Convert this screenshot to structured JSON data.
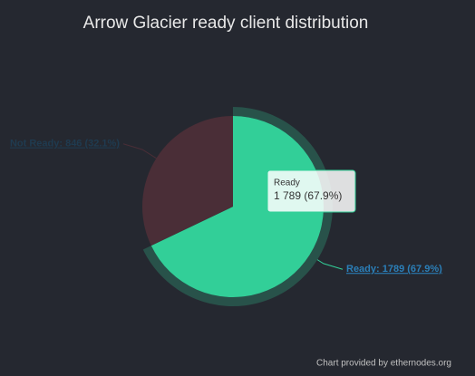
{
  "chart_data": {
    "type": "pie",
    "title": "Arrow Glacier ready client distribution",
    "categories": [
      "Ready",
      "Not Ready"
    ],
    "values": [
      1789,
      846
    ],
    "value_labels": [
      "Ready: 1789 (67.9%)",
      "Not Ready: 846 (32.1%)"
    ],
    "colors": [
      "#32cf98",
      "#4a2e37"
    ],
    "tooltip": {
      "title": "Ready",
      "text": "1 789 (67.9%)"
    },
    "credits": "Chart provided by ethernodes.org"
  }
}
